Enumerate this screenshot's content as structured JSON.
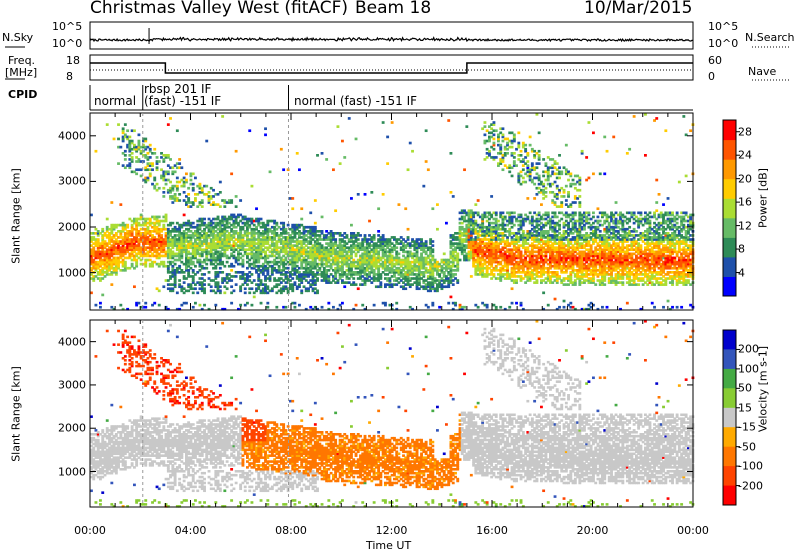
{
  "header": {
    "station": "Christmas Valley West (fitACF)",
    "beam": "Beam 18",
    "date": "10/Mar/2015"
  },
  "strips": {
    "nsky_label": "N.Sky",
    "nsky_ticks": [
      "10^5",
      "10^0"
    ],
    "nsearch_label": "N.Search",
    "nsearch_ticks": [
      "10^5",
      "10^0"
    ],
    "freq_label_line1": "Freq.",
    "freq_label_line2": "[MHz]",
    "freq_ticks": [
      "18",
      "8"
    ],
    "nave_label": "Nave",
    "nave_ticks": [
      "60",
      "0"
    ],
    "cpid_label": "CPID",
    "cpid_segments": [
      "normal",
      "rbsp 201 IF",
      "(fast) -151 IF",
      "normal (fast) -151 IF"
    ]
  },
  "chart_data": [
    {
      "type": "heatmap",
      "name": "power",
      "ylabel": "Slant Range [km]",
      "xlabel": "Time UT",
      "xlim_hours": [
        0,
        24
      ],
      "ylim_km": [
        180,
        4500
      ],
      "yticks": [
        "1000",
        "2000",
        "3000",
        "4000"
      ],
      "xticks": [
        "00:00",
        "04:00",
        "08:00",
        "12:00",
        "16:00",
        "20:00",
        "00:00"
      ],
      "colorbar": {
        "label": "Power [dB]",
        "ticks": [
          "4",
          "8",
          "12",
          "16",
          "20",
          "24",
          "28"
        ],
        "range": [
          0,
          30
        ],
        "colors": [
          "#0000ff",
          "#1e50aa",
          "#2e8b57",
          "#66bb66",
          "#aadd33",
          "#ffcc00",
          "#ff9900",
          "#ff5500",
          "#ff0000"
        ]
      }
    },
    {
      "type": "heatmap",
      "name": "velocity",
      "ylabel": "Slant Range [km]",
      "xlabel": "Time UT",
      "xlim_hours": [
        0,
        24
      ],
      "ylim_km": [
        180,
        4500
      ],
      "yticks": [
        "1000",
        "2000",
        "3000",
        "4000"
      ],
      "xticks": [
        "00:00",
        "04:00",
        "08:00",
        "12:00",
        "16:00",
        "20:00",
        "00:00"
      ],
      "colorbar": {
        "label": "Velocity [m s-1]",
        "ticks": [
          "200",
          "100",
          "50",
          "15",
          "-15",
          "-50",
          "-100",
          "-200"
        ],
        "range": [
          -250,
          250
        ],
        "colors": [
          "#0000cc",
          "#3355bb",
          "#44aa44",
          "#88cc33",
          "#c8c8c8",
          "#ffaa00",
          "#ff7700",
          "#ff4400",
          "#ff0000"
        ]
      }
    }
  ]
}
